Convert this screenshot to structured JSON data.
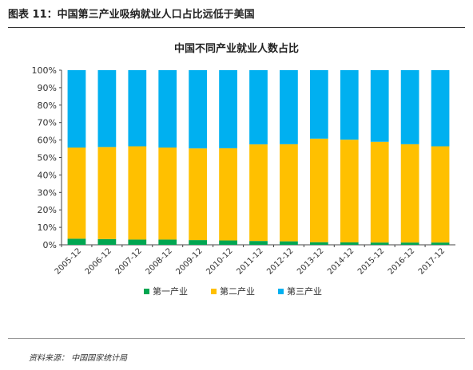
{
  "header": {
    "figure_title": "图表 11：中国第三产业吸纳就业人口占比远低于美国"
  },
  "chart_data": {
    "type": "bar",
    "stacked": true,
    "percent": true,
    "title": "中国不同产业就业人数占比",
    "categories": [
      "2005-12",
      "2006-12",
      "2007-12",
      "2008-12",
      "2009-12",
      "2010-12",
      "2011-12",
      "2012-12",
      "2013-12",
      "2014-12",
      "2015-12",
      "2016-12",
      "2017-12"
    ],
    "series": [
      {
        "name": "第一产业",
        "color": "#00a651",
        "values": [
          3.5,
          3.3,
          3.0,
          3.0,
          2.7,
          2.5,
          2.2,
          2.0,
          1.5,
          1.4,
          1.3,
          1.3,
          1.3
        ]
      },
      {
        "name": "第二产业",
        "color": "#ffc000",
        "values": [
          52.2,
          52.7,
          53.4,
          52.7,
          52.5,
          52.8,
          55.3,
          55.6,
          59.3,
          58.8,
          57.7,
          56.3,
          55.1
        ]
      },
      {
        "name": "第三产业",
        "color": "#00b0f0",
        "values": [
          44.3,
          44.0,
          43.6,
          44.3,
          44.8,
          44.7,
          42.5,
          42.4,
          39.2,
          39.8,
          41.0,
          42.4,
          43.6
        ]
      }
    ],
    "yticks": [
      "0%",
      "10%",
      "20%",
      "30%",
      "40%",
      "50%",
      "60%",
      "70%",
      "80%",
      "90%",
      "100%"
    ],
    "ylim": [
      0,
      100
    ],
    "legend_position": "bottom"
  },
  "footer": {
    "source": "资料来源：  中国国家统计局"
  }
}
